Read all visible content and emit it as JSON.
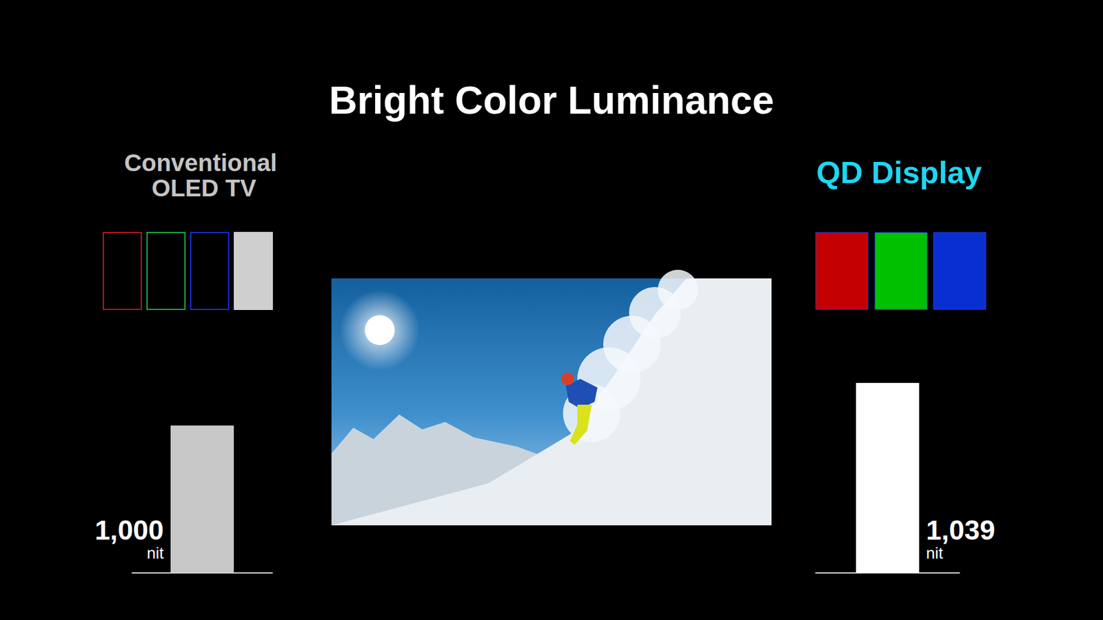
{
  "chart_data": {
    "type": "bar",
    "title": "Bright Color Luminance",
    "categories": [
      "Conventional OLED TV",
      "QD Display"
    ],
    "values": [
      1000,
      1039
    ],
    "value_labels": [
      "1,000 nit",
      "1,039 nit"
    ],
    "colors": [
      "#c8c8c8",
      "#ffffff"
    ],
    "ylim": [
      865,
      1100
    ],
    "tick_labels": false,
    "data_labels": true,
    "grid": false
  }
}
